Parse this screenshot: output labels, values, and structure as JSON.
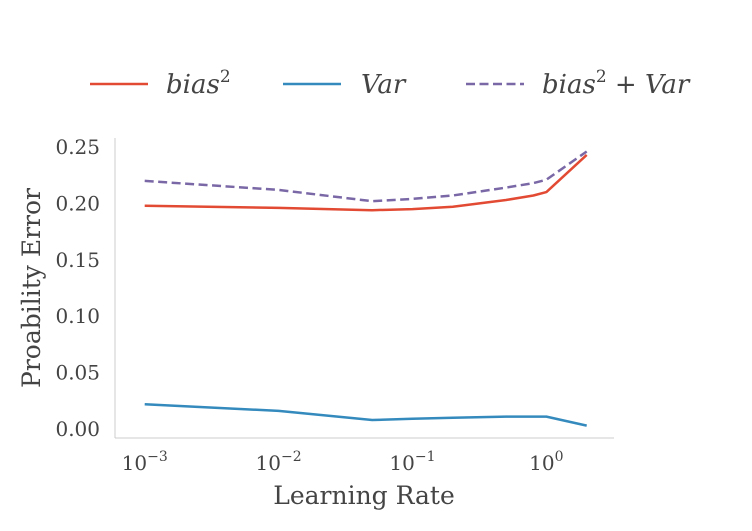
{
  "chart_data": {
    "type": "line",
    "xlabel": "Learning Rate",
    "ylabel": "Proability Error",
    "x_scale": "log",
    "xlim": [
      0.0006,
      3.2
    ],
    "ylim": [
      -0.008,
      0.258
    ],
    "grid": false,
    "legend_position": "top",
    "x": [
      0.001,
      0.01,
      0.05,
      0.1,
      0.2,
      0.5,
      0.8,
      1.0,
      2.0
    ],
    "x_ticks": [
      0.001,
      0.01,
      0.1,
      1
    ],
    "x_tick_labels": [
      {
        "base": "10",
        "exp": "−3"
      },
      {
        "base": "10",
        "exp": "−2"
      },
      {
        "base": "10",
        "exp": "−1"
      },
      {
        "base": "10",
        "exp": "0"
      }
    ],
    "y_ticks": [
      0.0,
      0.05,
      0.1,
      0.15,
      0.2,
      0.25
    ],
    "y_tick_labels": [
      "0.00",
      "0.05",
      "0.10",
      "0.15",
      "0.20",
      "0.25"
    ],
    "series": [
      {
        "name": "bias²",
        "legend": {
          "base": "bias",
          "sup": "2",
          "tail": ""
        },
        "color": "#E24A33",
        "dash": "solid",
        "values": [
          0.198,
          0.196,
          0.194,
          0.195,
          0.197,
          0.203,
          0.207,
          0.21,
          0.243
        ]
      },
      {
        "name": "Var",
        "legend": {
          "base": "Var",
          "sup": "",
          "tail": ""
        },
        "color": "#348ABD",
        "dash": "solid",
        "values": [
          0.022,
          0.016,
          0.008,
          0.009,
          0.01,
          0.011,
          0.011,
          0.011,
          0.003
        ]
      },
      {
        "name": "bias² + Var",
        "legend": {
          "base": "bias",
          "sup": "2",
          "tail": " + Var"
        },
        "color": "#7A68A6",
        "dash": "dashed",
        "values": [
          0.22,
          0.212,
          0.202,
          0.204,
          0.207,
          0.214,
          0.218,
          0.221,
          0.246
        ]
      }
    ]
  }
}
